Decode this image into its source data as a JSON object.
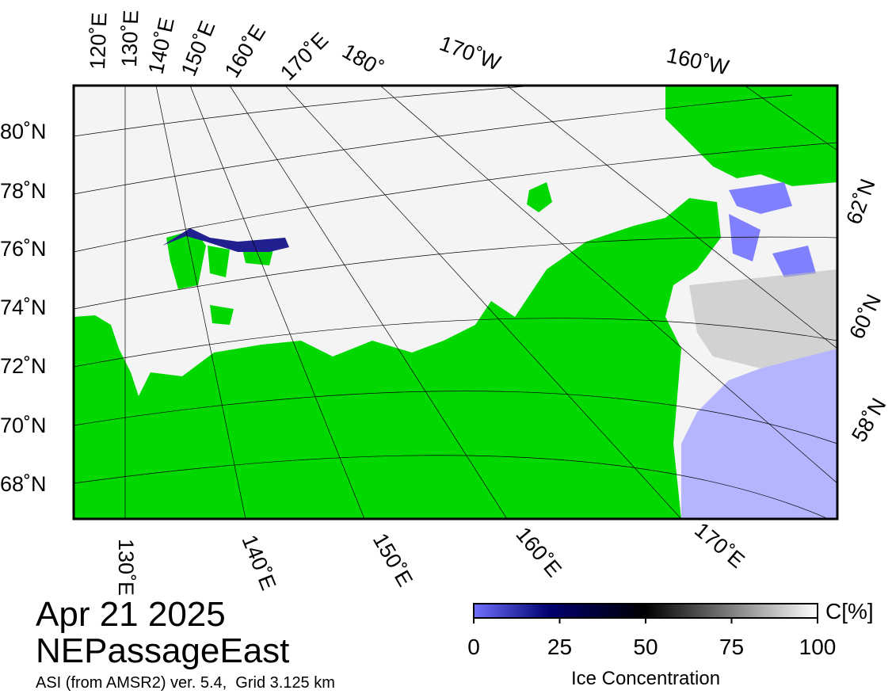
{
  "map": {
    "lon_labels_top": [
      "120˚E",
      "130˚E",
      "140˚E",
      "150˚E",
      "160˚E",
      "170˚E",
      "180˚",
      "170˚W",
      "160˚W"
    ],
    "lat_labels_left": [
      "80˚N",
      "78˚N",
      "76˚N",
      "74˚N",
      "72˚N",
      "70˚N",
      "68˚N"
    ],
    "lat_labels_right": [
      "62˚N",
      "60˚N",
      "58˚N"
    ],
    "lon_labels_bottom": [
      "130˚E",
      "140˚E",
      "150˚E",
      "160˚E",
      "170˚E"
    ]
  },
  "footer": {
    "date": "Apr 21 2025",
    "region": "NEPassageEast",
    "source": "ASI (from AMSR2) ver. 5.4,  Grid 3.125 km"
  },
  "colorbar": {
    "range": [
      0,
      100
    ],
    "ticks": [
      0,
      25,
      50,
      75,
      100
    ],
    "unit_label": "C[%]",
    "label": "Ice Concentration"
  }
}
